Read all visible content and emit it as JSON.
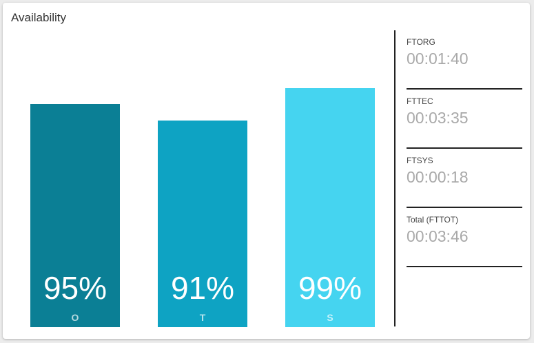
{
  "card": {
    "title": "Availability"
  },
  "chart_data": {
    "type": "bar",
    "categories": [
      "O",
      "T",
      "S"
    ],
    "values": [
      95,
      91,
      99
    ],
    "value_labels": [
      "95%",
      "91%",
      "99%"
    ],
    "colors": [
      "#0b7f95",
      "#0ea3c3",
      "#45d4f0"
    ],
    "ylim": [
      0,
      100
    ]
  },
  "stats": [
    {
      "label": "FTORG",
      "value": "00:01:40"
    },
    {
      "label": "FTTEC",
      "value": "00:03:35"
    },
    {
      "label": "FTSYS",
      "value": "00:00:18"
    },
    {
      "label": "Total (FTTOT)",
      "value": "00:03:46"
    }
  ]
}
